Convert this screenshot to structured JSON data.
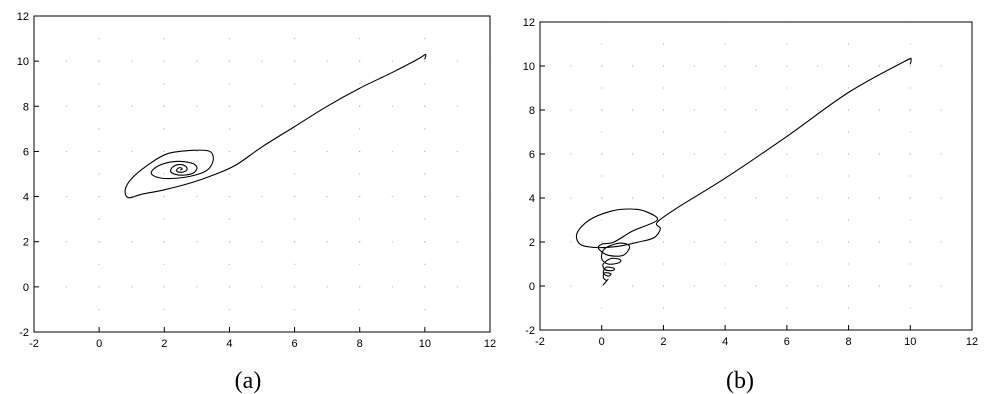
{
  "chart_data": [
    {
      "type": "line",
      "panel_label": "(a)",
      "title": "",
      "xlabel": "",
      "ylabel": "",
      "xlim": [
        -2,
        12
      ],
      "ylim": [
        -2,
        12
      ],
      "x_ticks": [
        "-2",
        "0",
        "2",
        "4",
        "6",
        "8",
        "10",
        "12"
      ],
      "y_ticks": [
        "-2",
        "0",
        "2",
        "4",
        "6",
        "8",
        "10",
        "12"
      ],
      "grid": "dotted",
      "series": [
        {
          "x": [
            10.0,
            10.02,
            9.8,
            9.0,
            8.0,
            7.0,
            6.0,
            5.0,
            4.2,
            3.5,
            2.8,
            2.0,
            1.3,
            0.9,
            0.8,
            1.0,
            1.5,
            2.1,
            2.9,
            3.4,
            3.5,
            3.3,
            2.8,
            2.2,
            1.8,
            1.6,
            1.8,
            2.3,
            2.8,
            3.0,
            2.9,
            2.6,
            2.35,
            2.2,
            2.25,
            2.45,
            2.65,
            2.7,
            2.6,
            2.45,
            2.38,
            2.42,
            2.5,
            2.55,
            2.5
          ],
          "y": [
            10.1,
            10.3,
            10.1,
            9.5,
            8.8,
            8.0,
            7.1,
            6.2,
            5.4,
            4.95,
            4.6,
            4.3,
            4.1,
            3.95,
            4.3,
            4.8,
            5.4,
            5.9,
            6.05,
            6.0,
            5.6,
            5.15,
            4.9,
            4.8,
            4.85,
            5.05,
            5.35,
            5.55,
            5.5,
            5.3,
            5.05,
            4.95,
            4.98,
            5.1,
            5.3,
            5.42,
            5.35,
            5.2,
            5.1,
            5.08,
            5.15,
            5.25,
            5.28,
            5.22,
            5.18
          ]
        }
      ]
    },
    {
      "type": "line",
      "panel_label": "(b)",
      "title": "",
      "xlabel": "",
      "ylabel": "",
      "xlim": [
        -2,
        12
      ],
      "ylim": [
        -2,
        12
      ],
      "x_ticks": [
        "-2",
        "0",
        "2",
        "4",
        "6",
        "8",
        "10",
        "12"
      ],
      "y_ticks": [
        "-2",
        "0",
        "2",
        "4",
        "6",
        "8",
        "10",
        "12"
      ],
      "grid": "dotted",
      "series": [
        {
          "x": [
            10.0,
            10.02,
            9.8,
            8.0,
            6.0,
            4.0,
            2.5,
            1.8,
            1.9,
            1.7,
            1.2,
            0.5,
            -0.2,
            -0.7,
            -0.8,
            -0.4,
            0.3,
            0.9,
            1.4,
            1.8,
            1.0,
            0.4,
            0.0,
            -0.1,
            0.2,
            0.7,
            0.9,
            0.6,
            0.1,
            0.0,
            0.2,
            0.55,
            0.6,
            0.3,
            0.05,
            0.1,
            0.35,
            0.4,
            0.15,
            0.05,
            0.2,
            0.3,
            0.1,
            0.05,
            0.15,
            0.2,
            0.05
          ],
          "y": [
            10.1,
            10.3,
            10.2,
            8.8,
            6.8,
            4.9,
            3.6,
            2.9,
            2.6,
            2.2,
            2.0,
            1.8,
            1.75,
            1.9,
            2.4,
            3.0,
            3.4,
            3.5,
            3.4,
            3.0,
            2.5,
            2.0,
            1.9,
            1.7,
            1.4,
            1.4,
            1.8,
            1.95,
            1.7,
            1.25,
            1.0,
            1.05,
            1.2,
            1.25,
            1.0,
            0.75,
            0.7,
            0.8,
            0.85,
            0.6,
            0.45,
            0.55,
            0.6,
            0.4,
            0.25,
            0.3,
            0.05
          ]
        }
      ]
    }
  ]
}
